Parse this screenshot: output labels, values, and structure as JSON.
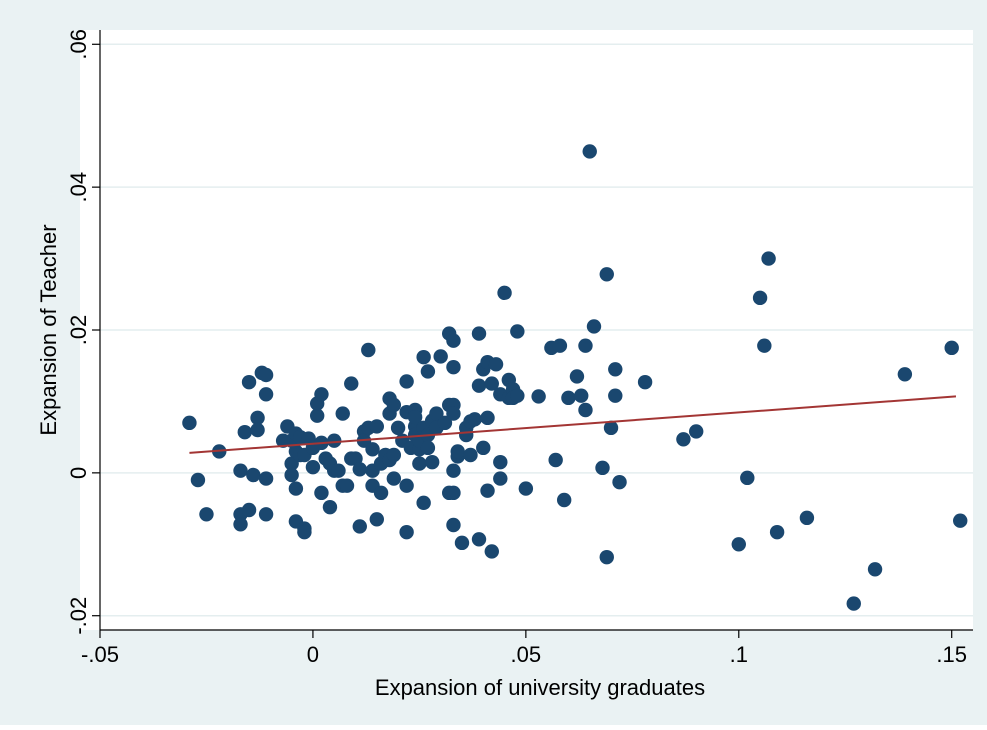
{
  "chart_data": {
    "type": "scatter",
    "title": "",
    "xlabel": "Expansion of university graduates",
    "ylabel": "Expansion of Teacher",
    "xlim": [
      -0.05,
      0.155
    ],
    "ylim": [
      -0.022,
      0.062
    ],
    "xticks": [
      {
        "value": -0.05,
        "label": "-.05"
      },
      {
        "value": 0,
        "label": "0"
      },
      {
        "value": 0.05,
        "label": ".05"
      },
      {
        "value": 0.1,
        "label": ".1"
      },
      {
        "value": 0.15,
        "label": ".15"
      }
    ],
    "yticks": [
      {
        "value": -0.02,
        "label": "-.02"
      },
      {
        "value": 0,
        "label": "0"
      },
      {
        "value": 0.02,
        "label": ".02"
      },
      {
        "value": 0.04,
        "label": ".04"
      },
      {
        "value": 0.06,
        "label": ".06"
      }
    ],
    "grid": "horizontal",
    "colors": {
      "background": "#eaf2f3",
      "plot_area": "#ffffff",
      "marker": "#1a476f",
      "fit_line": "#a33534",
      "grid": "#e4eeef"
    },
    "fit_line": {
      "x": [
        -0.029,
        0.151
      ],
      "y": [
        0.0028,
        0.0107
      ]
    },
    "points": [
      [
        -0.029,
        0.007
      ],
      [
        -0.027,
        -0.001
      ],
      [
        -0.025,
        -0.0058
      ],
      [
        -0.022,
        0.003
      ],
      [
        -0.017,
        -0.0058
      ],
      [
        -0.017,
        -0.0072
      ],
      [
        -0.017,
        0.0003
      ],
      [
        -0.016,
        0.0057
      ],
      [
        -0.015,
        0.0127
      ],
      [
        -0.015,
        -0.0052
      ],
      [
        -0.014,
        -0.0003
      ],
      [
        -0.013,
        0.0077
      ],
      [
        -0.013,
        0.006
      ],
      [
        -0.012,
        0.014
      ],
      [
        -0.011,
        0.0137
      ],
      [
        -0.011,
        0.011
      ],
      [
        -0.011,
        -0.0058
      ],
      [
        -0.011,
        -0.0008
      ],
      [
        -0.007,
        0.0045
      ],
      [
        -0.006,
        0.0065
      ],
      [
        -0.005,
        0.0045
      ],
      [
        -0.005,
        0.0013
      ],
      [
        -0.005,
        -0.0003
      ],
      [
        -0.004,
        0.0055
      ],
      [
        -0.004,
        0.003
      ],
      [
        -0.004,
        -0.0022
      ],
      [
        -0.004,
        -0.0068
      ],
      [
        -0.003,
        0.005
      ],
      [
        -0.003,
        0.0025
      ],
      [
        -0.002,
        -0.0078
      ],
      [
        -0.002,
        -0.0083
      ],
      [
        -0.002,
        0.0025
      ],
      [
        -0.001,
        0.0048
      ],
      [
        0.0,
        0.0008
      ],
      [
        0.0,
        0.0035
      ],
      [
        0.001,
        0.008
      ],
      [
        0.001,
        0.0097
      ],
      [
        0.002,
        0.011
      ],
      [
        0.002,
        0.0042
      ],
      [
        0.002,
        -0.0028
      ],
      [
        0.003,
        0.002
      ],
      [
        0.004,
        -0.0048
      ],
      [
        0.004,
        0.0013
      ],
      [
        0.005,
        0.0003
      ],
      [
        0.005,
        0.0045
      ],
      [
        0.006,
        0.0003
      ],
      [
        0.007,
        0.0083
      ],
      [
        0.007,
        -0.0018
      ],
      [
        0.008,
        -0.0018
      ],
      [
        0.009,
        0.0125
      ],
      [
        0.009,
        0.002
      ],
      [
        0.01,
        0.002
      ],
      [
        0.011,
        -0.0075
      ],
      [
        0.011,
        0.0005
      ],
      [
        0.012,
        0.0058
      ],
      [
        0.012,
        0.0045
      ],
      [
        0.013,
        0.0172
      ],
      [
        0.013,
        0.0063
      ],
      [
        0.014,
        0.0033
      ],
      [
        0.014,
        0.0003
      ],
      [
        0.014,
        -0.0018
      ],
      [
        0.015,
        0.0065
      ],
      [
        0.015,
        -0.0065
      ],
      [
        0.016,
        0.0013
      ],
      [
        0.016,
        -0.0028
      ],
      [
        0.017,
        0.0025
      ],
      [
        0.018,
        0.0104
      ],
      [
        0.018,
        0.0083
      ],
      [
        0.018,
        0.0018
      ],
      [
        0.019,
        0.0025
      ],
      [
        0.019,
        0.0095
      ],
      [
        0.019,
        -0.0008
      ],
      [
        0.02,
        0.0063
      ],
      [
        0.021,
        0.0045
      ],
      [
        0.022,
        0.0085
      ],
      [
        0.022,
        0.0128
      ],
      [
        0.022,
        -0.0018
      ],
      [
        0.022,
        -0.0083
      ],
      [
        0.023,
        0.0035
      ],
      [
        0.024,
        0.0065
      ],
      [
        0.024,
        0.0088
      ],
      [
        0.024,
        0.0053
      ],
      [
        0.024,
        0.0078
      ],
      [
        0.025,
        0.0033
      ],
      [
        0.025,
        0.0013
      ],
      [
        0.025,
        0.0045
      ],
      [
        0.026,
        0.0063
      ],
      [
        0.026,
        -0.0042
      ],
      [
        0.026,
        0.0162
      ],
      [
        0.027,
        0.0142
      ],
      [
        0.027,
        0.0053
      ],
      [
        0.027,
        0.0035
      ],
      [
        0.028,
        0.0073
      ],
      [
        0.028,
        0.0015
      ],
      [
        0.029,
        0.0083
      ],
      [
        0.029,
        0.0063
      ],
      [
        0.03,
        0.0163
      ],
      [
        0.031,
        0.007
      ],
      [
        0.032,
        0.0195
      ],
      [
        0.032,
        0.0095
      ],
      [
        0.032,
        -0.0028
      ],
      [
        0.033,
        0.0148
      ],
      [
        0.033,
        0.0185
      ],
      [
        0.033,
        0.0095
      ],
      [
        0.033,
        0.0083
      ],
      [
        0.033,
        0.0003
      ],
      [
        0.033,
        -0.0028
      ],
      [
        0.033,
        -0.0073
      ],
      [
        0.034,
        0.0023
      ],
      [
        0.034,
        0.003
      ],
      [
        0.035,
        -0.0098
      ],
      [
        0.036,
        0.0063
      ],
      [
        0.036,
        0.0053
      ],
      [
        0.037,
        0.0072
      ],
      [
        0.037,
        0.0025
      ],
      [
        0.038,
        0.0075
      ],
      [
        0.039,
        0.0195
      ],
      [
        0.039,
        -0.0093
      ],
      [
        0.039,
        0.0122
      ],
      [
        0.04,
        0.0145
      ],
      [
        0.04,
        0.0035
      ],
      [
        0.041,
        0.0155
      ],
      [
        0.041,
        0.0077
      ],
      [
        0.041,
        -0.0025
      ],
      [
        0.042,
        0.0125
      ],
      [
        0.042,
        -0.011
      ],
      [
        0.043,
        0.0152
      ],
      [
        0.044,
        -0.0008
      ],
      [
        0.044,
        0.0015
      ],
      [
        0.044,
        0.011
      ],
      [
        0.045,
        0.0252
      ],
      [
        0.046,
        0.0105
      ],
      [
        0.046,
        0.013
      ],
      [
        0.047,
        0.0117
      ],
      [
        0.047,
        0.0105
      ],
      [
        0.048,
        0.0198
      ],
      [
        0.048,
        0.0108
      ],
      [
        0.05,
        -0.0022
      ],
      [
        0.053,
        0.0107
      ],
      [
        0.056,
        0.0175
      ],
      [
        0.057,
        0.0018
      ],
      [
        0.058,
        0.0178
      ],
      [
        0.059,
        -0.0038
      ],
      [
        0.06,
        0.0105
      ],
      [
        0.062,
        0.0135
      ],
      [
        0.063,
        0.0108
      ],
      [
        0.064,
        0.0178
      ],
      [
        0.064,
        0.0088
      ],
      [
        0.065,
        0.045
      ],
      [
        0.066,
        0.0205
      ],
      [
        0.068,
        0.0007
      ],
      [
        0.069,
        0.0278
      ],
      [
        0.069,
        -0.0118
      ],
      [
        0.07,
        0.0063
      ],
      [
        0.071,
        0.0108
      ],
      [
        0.071,
        0.0145
      ],
      [
        0.072,
        -0.0013
      ],
      [
        0.078,
        0.0127
      ],
      [
        0.087,
        0.0047
      ],
      [
        0.09,
        0.0058
      ],
      [
        0.1,
        -0.01
      ],
      [
        0.102,
        -0.0007
      ],
      [
        0.105,
        0.0245
      ],
      [
        0.106,
        0.0178
      ],
      [
        0.107,
        0.03
      ],
      [
        0.109,
        -0.0083
      ],
      [
        0.116,
        -0.0063
      ],
      [
        0.127,
        -0.0183
      ],
      [
        0.132,
        -0.0135
      ],
      [
        0.139,
        0.0138
      ],
      [
        0.15,
        0.0175
      ],
      [
        0.152,
        -0.0067
      ]
    ]
  }
}
